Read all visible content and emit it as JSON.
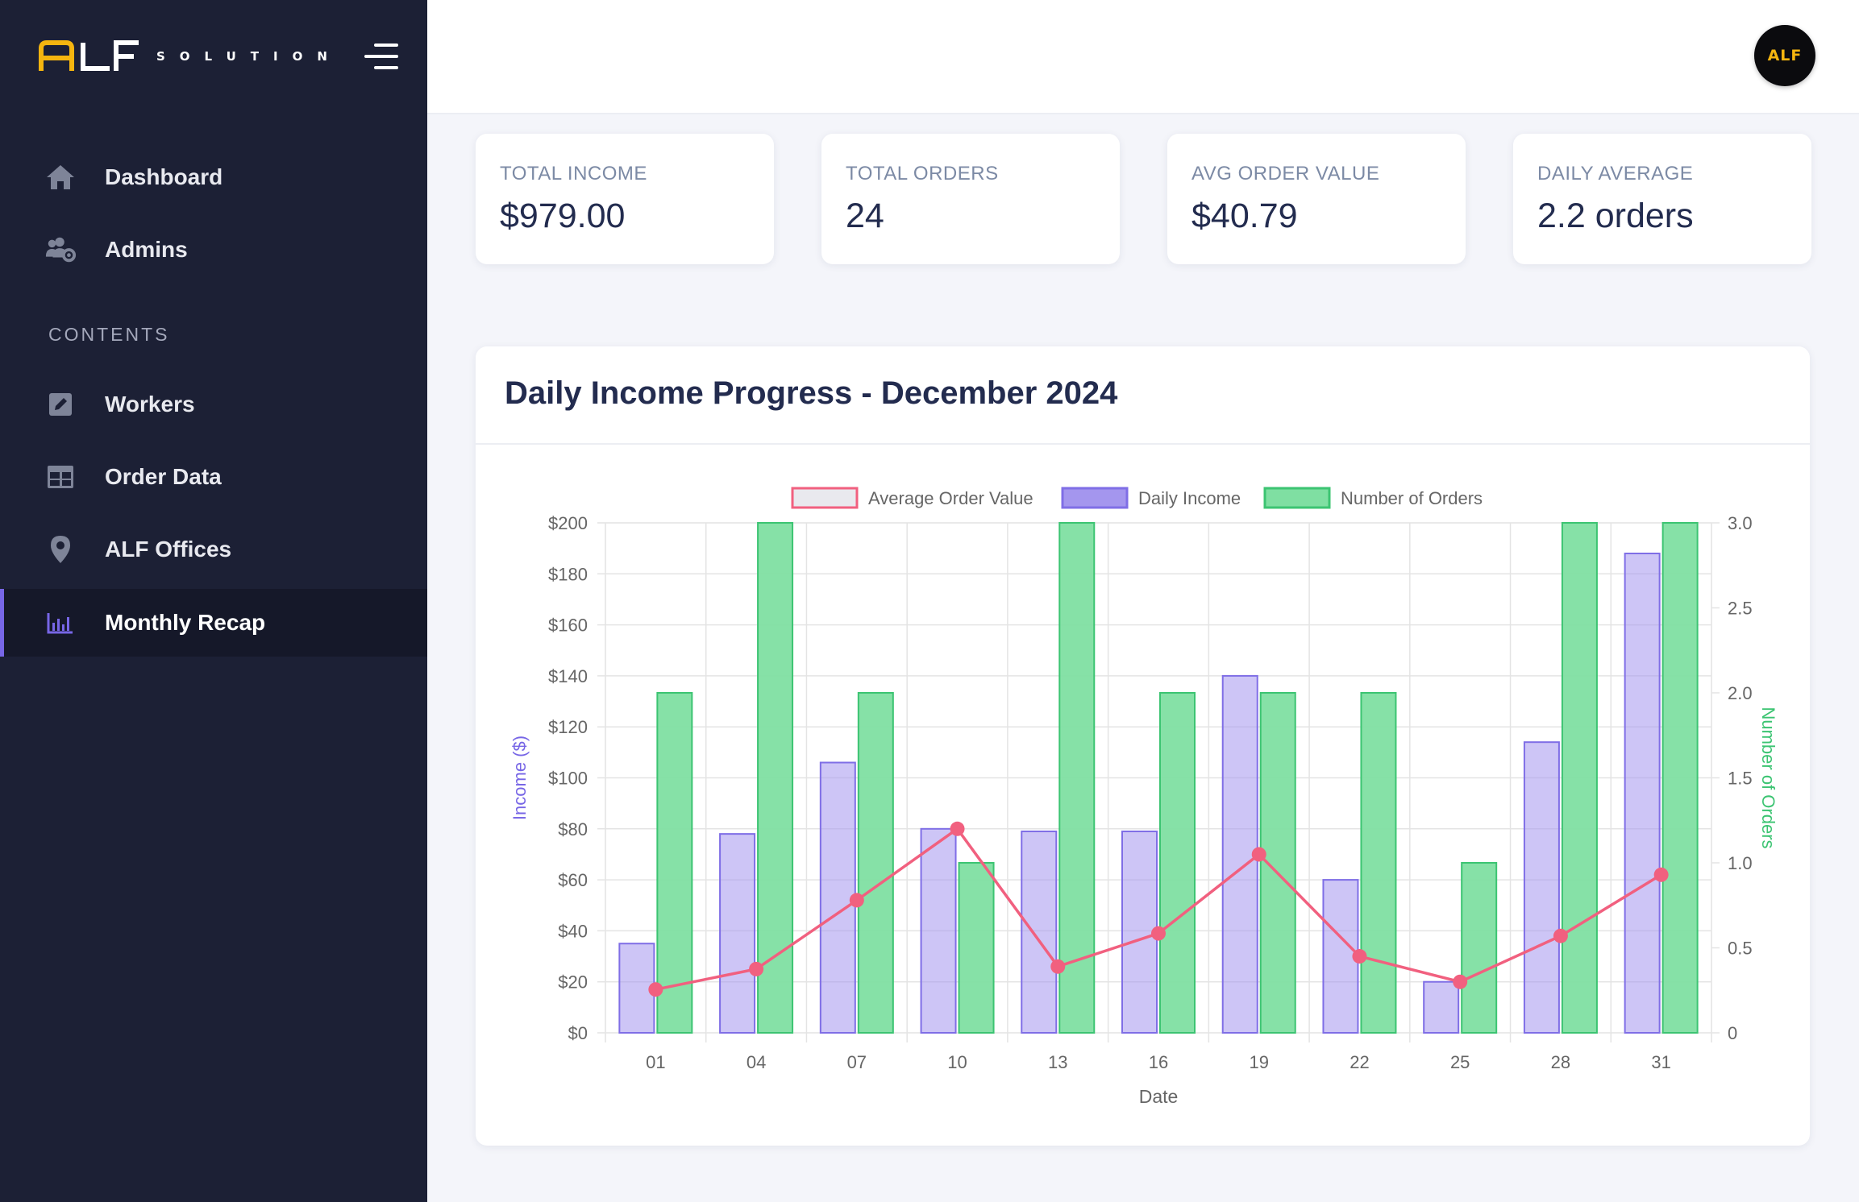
{
  "brand": {
    "logo_text": "ALF",
    "subtitle": "SOLUTION"
  },
  "sidebar": {
    "items_top": [
      {
        "label": "Dashboard",
        "icon": "home-icon"
      },
      {
        "label": "Admins",
        "icon": "users-gear-icon"
      }
    ],
    "section_label": "CONTENTS",
    "items_contents": [
      {
        "label": "Workers",
        "icon": "edit-icon"
      },
      {
        "label": "Order Data",
        "icon": "table-icon"
      },
      {
        "label": "ALF Offices",
        "icon": "location-pin-icon"
      },
      {
        "label": "Monthly Recap",
        "icon": "bar-chart-icon",
        "active": true
      }
    ]
  },
  "header": {
    "avatar_text": "ALF"
  },
  "stats": [
    {
      "label": "TOTAL INCOME",
      "value": "$979.00"
    },
    {
      "label": "TOTAL ORDERS",
      "value": "24"
    },
    {
      "label": "AVG ORDER VALUE",
      "value": "$40.79"
    },
    {
      "label": "DAILY AVERAGE",
      "value": "2.2 orders"
    }
  ],
  "colors": {
    "sidebar_bg": "#1c2035",
    "accent": "#7766e6",
    "income_bar": "#a496ee",
    "orders_bar": "#7fdfa2",
    "avg_line": "#f1607f"
  },
  "chart_data": {
    "type": "bar",
    "title": "Daily Income Progress - December 2024",
    "xlabel": "Date",
    "ylabel": "Income ($)",
    "y2label": "Number of Orders",
    "categories": [
      "01",
      "04",
      "07",
      "10",
      "13",
      "16",
      "19",
      "22",
      "25",
      "28",
      "31"
    ],
    "ylim": [
      0,
      200
    ],
    "y_ticks": [
      "$0",
      "$20",
      "$40",
      "$60",
      "$80",
      "$100",
      "$120",
      "$140",
      "$160",
      "$180",
      "$200"
    ],
    "y2lim": [
      0,
      3
    ],
    "y2_ticks": [
      "0",
      "0.5",
      "1.0",
      "1.5",
      "2.0",
      "2.5",
      "3.0"
    ],
    "grid": true,
    "legend_position": "top",
    "series": [
      {
        "name": "Average Order Value",
        "type": "line",
        "axis": "left",
        "values": [
          17,
          25,
          52,
          80,
          26,
          39,
          70,
          30,
          20,
          38,
          62
        ]
      },
      {
        "name": "Daily Income",
        "type": "bar",
        "axis": "left",
        "values": [
          35,
          78,
          106,
          80,
          79,
          79,
          140,
          60,
          20,
          114,
          188
        ]
      },
      {
        "name": "Number of Orders",
        "type": "bar",
        "axis": "right",
        "values": [
          2,
          3,
          2,
          1,
          3,
          2,
          2,
          2,
          1,
          3,
          3
        ]
      }
    ]
  }
}
